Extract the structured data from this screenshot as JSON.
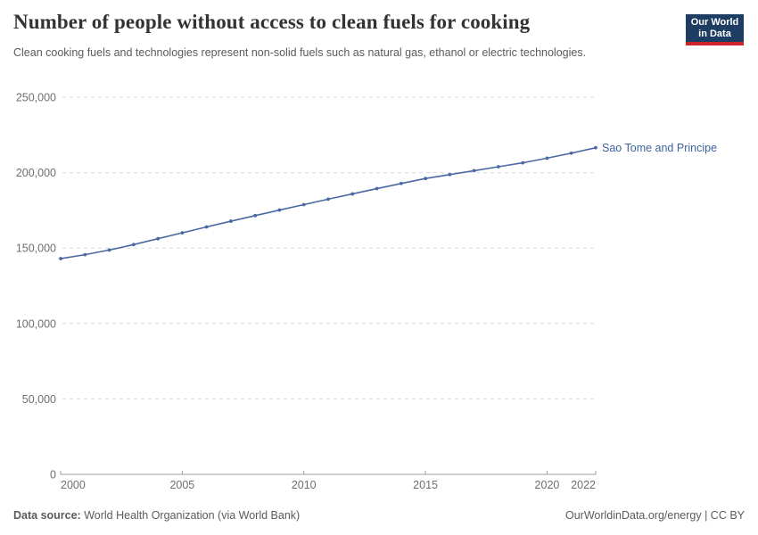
{
  "header": {
    "title": "Number of people without access to clean fuels for cooking",
    "subtitle": "Clean cooking fuels and technologies represent non-solid fuels such as natural gas, ethanol or electric technologies.",
    "logo": {
      "line1": "Our World",
      "line2": "in Data",
      "bg_color": "#1d3d63",
      "accent_color": "#cc2428",
      "text_color": "#ffffff"
    }
  },
  "chart_data": {
    "type": "line",
    "title": "Number of people without access to clean fuels for cooking",
    "xlabel": "",
    "ylabel": "",
    "xlim": [
      2000,
      2022
    ],
    "ylim": [
      0,
      250000
    ],
    "grid": "horizontal-dashed",
    "legend_position": "end-of-line-label",
    "colors": {
      "grid": "#dcdcdc",
      "axis": "#9e9e9e",
      "tick_label": "#6e6e6e"
    },
    "yticks": [
      {
        "value": 0,
        "label": "0"
      },
      {
        "value": 50000,
        "label": "50,000"
      },
      {
        "value": 100000,
        "label": "100,000"
      },
      {
        "value": 150000,
        "label": "150,000"
      },
      {
        "value": 200000,
        "label": "200,000"
      },
      {
        "value": 250000,
        "label": "250,000"
      }
    ],
    "xticks": [
      {
        "value": 2000,
        "label": "2000"
      },
      {
        "value": 2005,
        "label": "2005"
      },
      {
        "value": 2010,
        "label": "2010"
      },
      {
        "value": 2015,
        "label": "2015"
      },
      {
        "value": 2020,
        "label": "2020"
      },
      {
        "value": 2022,
        "label": "2022"
      }
    ],
    "series": [
      {
        "name": "Sao Tome and Principe",
        "color": "#4a69a2",
        "label_color": "#3d639d",
        "x": [
          2000,
          2001,
          2002,
          2003,
          2004,
          2005,
          2006,
          2007,
          2008,
          2009,
          2010,
          2011,
          2012,
          2013,
          2014,
          2015,
          2016,
          2017,
          2018,
          2019,
          2020,
          2021,
          2022
        ],
        "values": [
          143000,
          145600,
          148700,
          152300,
          156200,
          160100,
          164000,
          167800,
          171500,
          175200,
          178800,
          182400,
          185900,
          189400,
          192800,
          196100,
          198700,
          201300,
          203900,
          206500,
          209600,
          212900,
          216500
        ]
      }
    ]
  },
  "footer": {
    "source_label": "Data source:",
    "source_text": " World Health Organization (via World Bank)",
    "credit": "OurWorldinData.org/energy | CC BY"
  }
}
